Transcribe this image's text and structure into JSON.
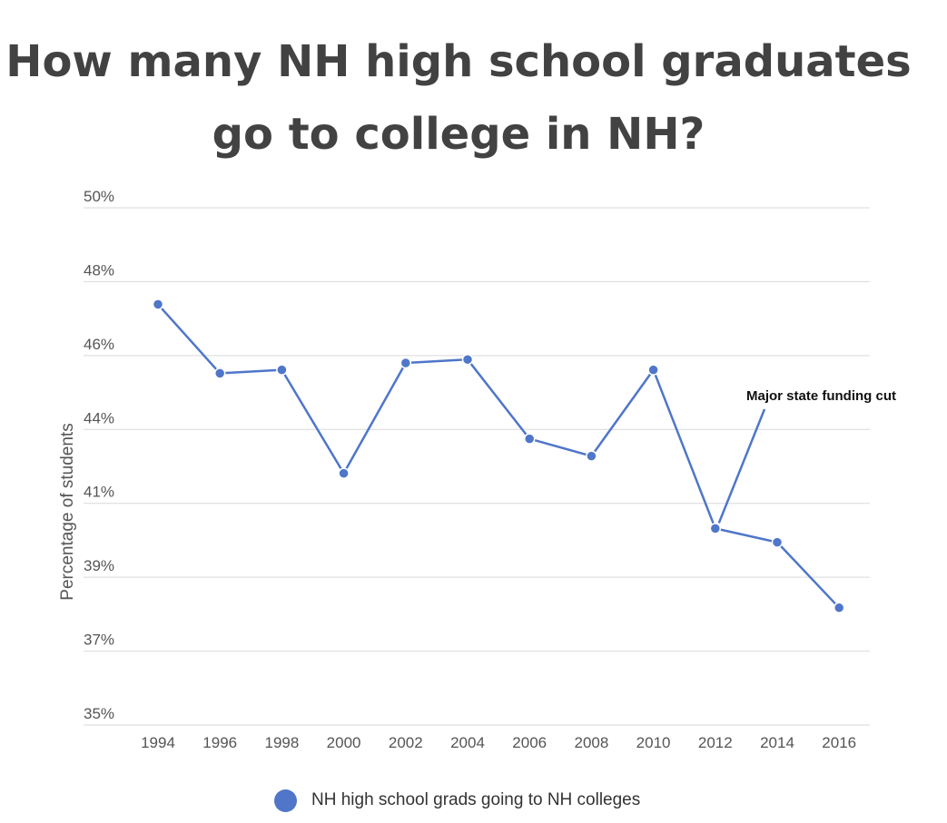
{
  "chart_data": {
    "type": "line",
    "title_lines": [
      "How many NH high school graduates",
      "go to college in NH?"
    ],
    "ylabel": "Percentage of students",
    "xlabel": "",
    "yticks": [
      "35%",
      "37%",
      "39%",
      "41%",
      "44%",
      "46%",
      "48%",
      "50%"
    ],
    "ylim": [
      35,
      50
    ],
    "categories": [
      "1994",
      "1996",
      "1998",
      "2000",
      "2002",
      "2004",
      "2006",
      "2008",
      "2010",
      "2012",
      "2014",
      "2016"
    ],
    "series": [
      {
        "name": "NH high school grads going to NH colleges",
        "color": "#4f76c9",
        "values": [
          47.2,
          45.2,
          45.3,
          42.3,
          45.5,
          45.6,
          43.3,
          42.8,
          45.3,
          40.7,
          40.3,
          38.4
        ]
      }
    ],
    "annotations": [
      {
        "text": "Major state funding cut",
        "x": "2012",
        "y": 40.7
      }
    ],
    "grid": true,
    "legend": "bottom"
  }
}
